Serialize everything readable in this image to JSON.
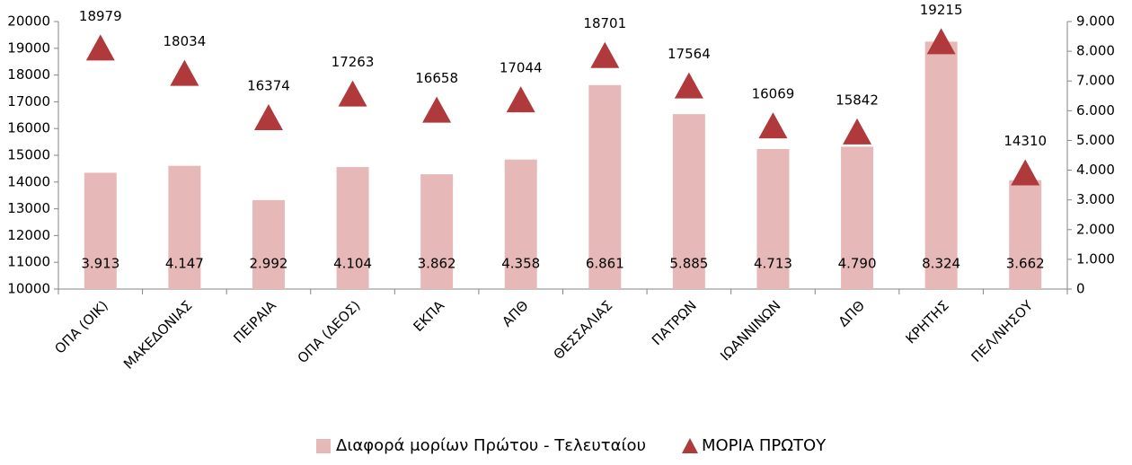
{
  "chart_data": {
    "type": "bar",
    "categories": [
      "ΟΠΑ (ΟΙΚ)",
      "ΜΑΚΕΔΟΝΙΑΣ",
      "ΠΕΙΡΑΙΑ",
      "ΟΠΑ (ΔΕΟΣ)",
      "ΕΚΠΑ",
      "ΑΠΘ",
      "ΘΕΣΣΑΛΙΑΣ",
      "ΠΑΤΡΩΝ",
      "ΙΩΑΝΝΙΝΩΝ",
      "ΔΠΘ",
      "ΚΡΗΤΗΣ",
      "ΠΕΛ/ΝΗΣΟΥ"
    ],
    "series": [
      {
        "name": "Διαφορά μορίων Πρώτου - Τελευταίου",
        "type": "bar",
        "axis": "y2",
        "color": "#e6b9b8",
        "values": [
          3913,
          4147,
          2992,
          4104,
          3862,
          4358,
          6861,
          5885,
          4713,
          4790,
          8324,
          3662
        ],
        "value_labels": [
          "3.913",
          "4.147",
          "2.992",
          "4.104",
          "3.862",
          "4.358",
          "6.861",
          "5.885",
          "4.713",
          "4.790",
          "8.324",
          "3.662"
        ]
      },
      {
        "name": "ΜΟΡΙΑ ΠΡΩΤΟΥ",
        "type": "scatter",
        "marker": "triangle",
        "color": "#b0393b",
        "values": [
          18979,
          18034,
          16374,
          17263,
          16658,
          17044,
          18701,
          17564,
          16069,
          15842,
          19215,
          14310
        ]
      }
    ],
    "ylim": [
      10000,
      20000
    ],
    "yticks": [
      10000,
      11000,
      12000,
      13000,
      14000,
      15000,
      16000,
      17000,
      18000,
      19000,
      20000
    ],
    "y2lim": [
      0,
      9000
    ],
    "y2ticks": [
      0,
      {
        "value": 1000,
        "label": "1.000"
      },
      {
        "value": 2000,
        "label": "2.000"
      },
      {
        "value": 3000,
        "label": "3.000"
      },
      {
        "value": 4000,
        "label": "4.000"
      },
      {
        "value": 5000,
        "label": "5.000"
      },
      {
        "value": 6000,
        "label": "6.000"
      },
      {
        "value": 7000,
        "label": "7.000"
      },
      {
        "value": 8000,
        "label": "8.000"
      },
      {
        "value": 9000,
        "label": "9.000"
      }
    ],
    "legend": "bottom"
  }
}
